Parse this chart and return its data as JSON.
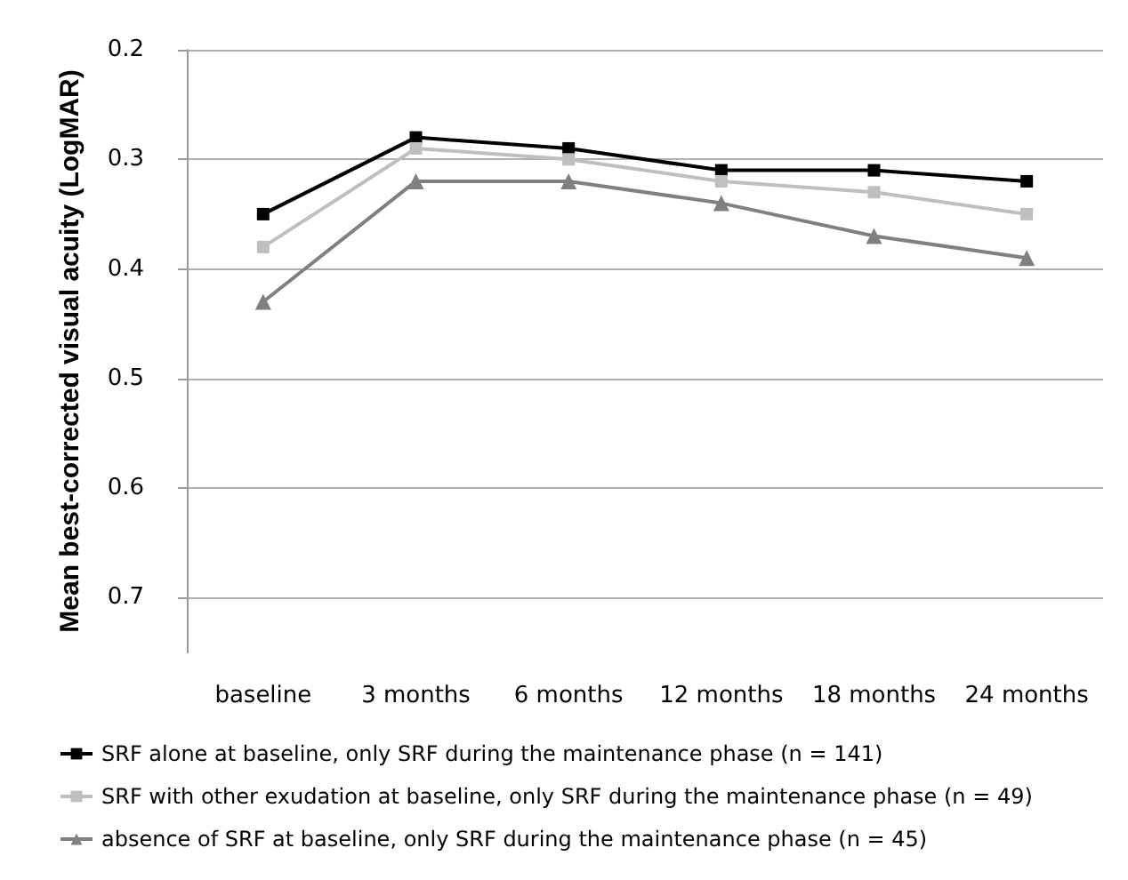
{
  "chart_data": {
    "type": "line",
    "ylabel": "Mean best-corrected visual acuity (LogMAR)",
    "categories": [
      "baseline",
      "3 months",
      "6 months",
      "12 months",
      "18 months",
      "24 months"
    ],
    "series": [
      {
        "name": "SRF alone at baseline, only SRF during the maintenance phase (n = 141)",
        "color": "#000000",
        "marker": "square",
        "values": [
          0.35,
          0.28,
          0.29,
          0.31,
          0.31,
          0.32
        ]
      },
      {
        "name": "SRF with other exudation at baseline, only SRF during the maintenance phase (n = 49)",
        "color": "#bfbfbf",
        "marker": "square",
        "values": [
          0.38,
          0.29,
          0.3,
          0.32,
          0.33,
          0.35
        ]
      },
      {
        "name": "absence of SRF at baseline, only SRF during the maintenance phase (n = 45)",
        "color": "#808080",
        "marker": "triangle",
        "values": [
          0.43,
          0.32,
          0.32,
          0.34,
          0.37,
          0.39
        ]
      }
    ],
    "ylim": [
      0.75,
      0.2
    ],
    "yticks": [
      0.2,
      0.3,
      0.4,
      0.5,
      0.6,
      0.7
    ],
    "grid": "y",
    "legend": "bottom",
    "line_style": "solid"
  }
}
